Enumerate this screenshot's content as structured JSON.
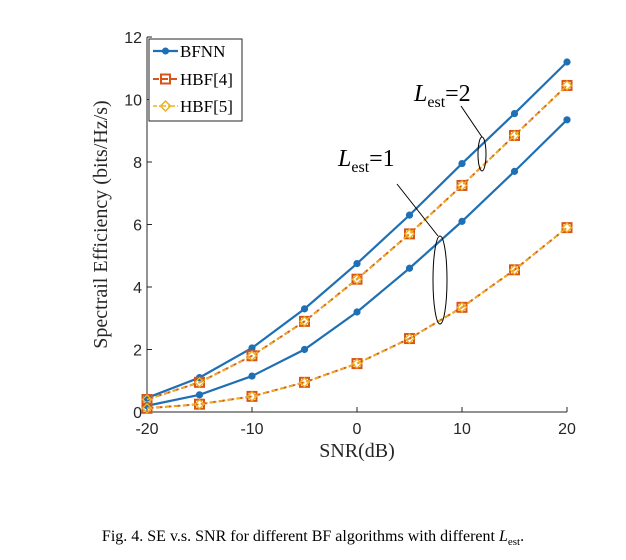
{
  "chart_data": {
    "type": "line",
    "xlabel": "SNR(dB)",
    "ylabel": "Spectrail Efficiency (bits/Hz/s)",
    "xlim": [
      -20,
      20
    ],
    "ylim": [
      0,
      12
    ],
    "xticks": [
      -20,
      -10,
      0,
      10,
      20
    ],
    "yticks": [
      0,
      2,
      4,
      6,
      8,
      10,
      12
    ],
    "x": [
      -20,
      -15,
      -10,
      -5,
      0,
      5,
      10,
      15,
      20
    ],
    "series": [
      {
        "name": "BFNN",
        "group": "L_est=2",
        "values": [
          0.45,
          1.1,
          2.05,
          3.3,
          4.75,
          6.3,
          7.95,
          9.55,
          11.2
        ]
      },
      {
        "name": "HBF[4]",
        "group": "L_est=2",
        "values": [
          0.4,
          0.95,
          1.8,
          2.9,
          4.25,
          5.7,
          7.25,
          8.85,
          10.45
        ]
      },
      {
        "name": "HBF[5]",
        "group": "L_est=2",
        "values": [
          0.4,
          0.95,
          1.8,
          2.9,
          4.25,
          5.7,
          7.25,
          8.85,
          10.45
        ]
      },
      {
        "name": "BFNN",
        "group": "L_est=1",
        "values": [
          0.2,
          0.55,
          1.15,
          2.0,
          3.2,
          4.6,
          6.1,
          7.7,
          9.35
        ]
      },
      {
        "name": "HBF[4]",
        "group": "L_est=1",
        "values": [
          0.12,
          0.25,
          0.5,
          0.95,
          1.55,
          2.35,
          3.35,
          4.55,
          5.9
        ]
      },
      {
        "name": "HBF[5]",
        "group": "L_est=1",
        "values": [
          0.12,
          0.25,
          0.5,
          0.95,
          1.55,
          2.35,
          3.35,
          4.55,
          5.9
        ]
      }
    ],
    "legend": {
      "position": "top-left",
      "entries": [
        "BFNN",
        "HBF[4]",
        "HBF[5]"
      ]
    },
    "annotations": [
      {
        "label": "L",
        "subscript": "est",
        "text": "=2"
      },
      {
        "label": "L",
        "subscript": "est",
        "text": "=1"
      }
    ],
    "grid": false
  },
  "colors": {
    "bfnn": "#1f6fb5",
    "hbf4": "#d9541a",
    "hbf5": "#edb120",
    "axis": "#262626"
  },
  "caption": {
    "prefix": "Fig. 4. SE v.s. SNR for different BF algorithms with different ",
    "symbol": "L",
    "subscript": "est",
    "suffix": "."
  }
}
